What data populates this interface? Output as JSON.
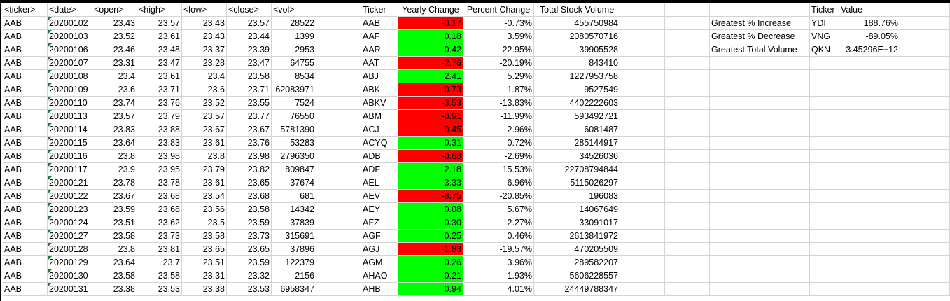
{
  "sheet": {
    "headers": [
      "<ticker>",
      "<date>",
      "<open>",
      "<high>",
      "<low>",
      "<close>",
      "<vol>"
    ],
    "rows": [
      [
        "AAB",
        "20200102",
        "23.43",
        "23.57",
        "23.43",
        "23.57",
        "28522"
      ],
      [
        "AAB",
        "20200103",
        "23.52",
        "23.61",
        "23.43",
        "23.44",
        "1399"
      ],
      [
        "AAB",
        "20200106",
        "23.46",
        "23.48",
        "23.37",
        "23.39",
        "2953"
      ],
      [
        "AAB",
        "20200107",
        "23.31",
        "23.47",
        "23.28",
        "23.47",
        "64755"
      ],
      [
        "AAB",
        "20200108",
        "23.4",
        "23.61",
        "23.4",
        "23.58",
        "8534"
      ],
      [
        "AAB",
        "20200109",
        "23.6",
        "23.71",
        "23.6",
        "23.71",
        "62083971"
      ],
      [
        "AAB",
        "20200110",
        "23.74",
        "23.76",
        "23.52",
        "23.55",
        "7524"
      ],
      [
        "AAB",
        "20200113",
        "23.57",
        "23.79",
        "23.57",
        "23.77",
        "76550"
      ],
      [
        "AAB",
        "20200114",
        "23.83",
        "23.88",
        "23.67",
        "23.67",
        "5781390"
      ],
      [
        "AAB",
        "20200115",
        "23.64",
        "23.83",
        "23.61",
        "23.76",
        "53283"
      ],
      [
        "AAB",
        "20200116",
        "23.8",
        "23.98",
        "23.8",
        "23.98",
        "2796350"
      ],
      [
        "AAB",
        "20200117",
        "23.9",
        "23.95",
        "23.79",
        "23.82",
        "809847"
      ],
      [
        "AAB",
        "20200121",
        "23.78",
        "23.78",
        "23.61",
        "23.65",
        "37674"
      ],
      [
        "AAB",
        "20200122",
        "23.67",
        "23.68",
        "23.54",
        "23.68",
        "681"
      ],
      [
        "AAB",
        "20200123",
        "23.59",
        "23.68",
        "23.56",
        "23.58",
        "14342"
      ],
      [
        "AAB",
        "20200124",
        "23.51",
        "23.62",
        "23.5",
        "23.59",
        "37839"
      ],
      [
        "AAB",
        "20200127",
        "23.58",
        "23.73",
        "23.58",
        "23.73",
        "315691"
      ],
      [
        "AAB",
        "20200128",
        "23.8",
        "23.81",
        "23.65",
        "23.65",
        "37896"
      ],
      [
        "AAB",
        "20200129",
        "23.64",
        "23.7",
        "23.51",
        "23.59",
        "122379"
      ],
      [
        "AAB",
        "20200130",
        "23.58",
        "23.58",
        "23.31",
        "23.32",
        "2156"
      ],
      [
        "AAB",
        "20200131",
        "23.38",
        "23.53",
        "23.38",
        "23.53",
        "6958347"
      ]
    ]
  },
  "summary": {
    "headers": [
      "Ticker",
      "Yearly Change",
      "Percent Change",
      "Total Stock Volume"
    ],
    "rows": [
      {
        "ticker": "AAB",
        "change": "-0.17",
        "pct": "-0.73%",
        "vol": "455750984",
        "color": "red"
      },
      {
        "ticker": "AAF",
        "change": "0.18",
        "pct": "3.59%",
        "vol": "2080570716",
        "color": "green"
      },
      {
        "ticker": "AAR",
        "change": "0.42",
        "pct": "22.95%",
        "vol": "39905528",
        "color": "green"
      },
      {
        "ticker": "AAT",
        "change": "-2.76",
        "pct": "-20.19%",
        "vol": "843410",
        "color": "red"
      },
      {
        "ticker": "ABJ",
        "change": "2.41",
        "pct": "5.29%",
        "vol": "1227953758",
        "color": "green"
      },
      {
        "ticker": "ABK",
        "change": "-0.73",
        "pct": "-1.87%",
        "vol": "9527549",
        "color": "red"
      },
      {
        "ticker": "ABKV",
        "change": "-3.53",
        "pct": "-13.83%",
        "vol": "4402222603",
        "color": "red"
      },
      {
        "ticker": "ABM",
        "change": "-0.91",
        "pct": "-11.99%",
        "vol": "593492721",
        "color": "red"
      },
      {
        "ticker": "ACJ",
        "change": "-0.45",
        "pct": "-2.96%",
        "vol": "6081487",
        "color": "red"
      },
      {
        "ticker": "ACYQ",
        "change": "0.31",
        "pct": "0.72%",
        "vol": "285144917",
        "color": "green"
      },
      {
        "ticker": "ADB",
        "change": "-0.68",
        "pct": "-2.69%",
        "vol": "34526036",
        "color": "red"
      },
      {
        "ticker": "ADF",
        "change": "2.18",
        "pct": "15.53%",
        "vol": "22708794844",
        "color": "green"
      },
      {
        "ticker": "AEL",
        "change": "3.33",
        "pct": "6.96%",
        "vol": "5115026297",
        "color": "green"
      },
      {
        "ticker": "AEV",
        "change": "-8.75",
        "pct": "-20.85%",
        "vol": "196083",
        "color": "red"
      },
      {
        "ticker": "AEY",
        "change": "0.08",
        "pct": "5.67%",
        "vol": "14067649",
        "color": "green"
      },
      {
        "ticker": "AFZ",
        "change": "0.30",
        "pct": "2.27%",
        "vol": "33091017",
        "color": "green"
      },
      {
        "ticker": "AGF",
        "change": "0.25",
        "pct": "0.46%",
        "vol": "2613841972",
        "color": "green"
      },
      {
        "ticker": "AGJ",
        "change": "-1.83",
        "pct": "-19.57%",
        "vol": "470205509",
        "color": "red"
      },
      {
        "ticker": "AGM",
        "change": "0.26",
        "pct": "3.96%",
        "vol": "289582207",
        "color": "green"
      },
      {
        "ticker": "AHAO",
        "change": "0.21",
        "pct": "1.93%",
        "vol": "5606228557",
        "color": "green"
      },
      {
        "ticker": "AHB",
        "change": "0.94",
        "pct": "4.01%",
        "vol": "24449788347",
        "color": "green"
      }
    ]
  },
  "greatest": {
    "headers": [
      "Ticker",
      "Value"
    ],
    "rows": [
      {
        "label": "Greatest % Increase",
        "ticker": "YDI",
        "value": "188.76%"
      },
      {
        "label": "Greatest % Decrease",
        "ticker": "VNG",
        "value": "-89.05%"
      },
      {
        "label": "Greatest Total Volume",
        "ticker": "QKN",
        "value": "3.45296E+12"
      }
    ]
  },
  "colors": {
    "red": "#ff0000",
    "green": "#00ff00",
    "grid": "#d4d4d4"
  }
}
